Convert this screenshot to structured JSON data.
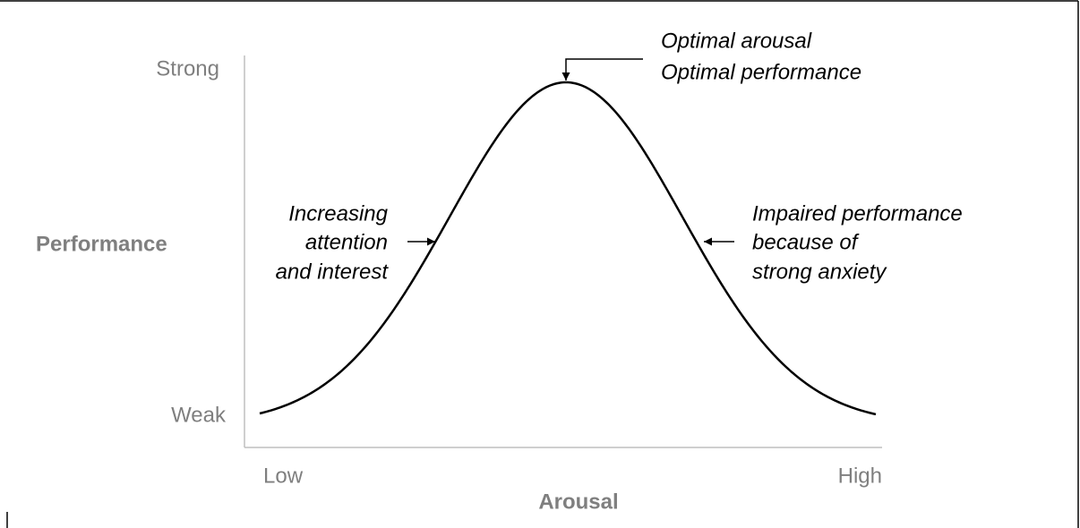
{
  "axes": {
    "y_label": "Performance",
    "y_high": "Strong",
    "y_low": "Weak",
    "x_label": "Arousal",
    "x_low": "Low",
    "x_high": "High"
  },
  "annotations": {
    "peak": [
      "Optimal arousal",
      "Optimal performance"
    ],
    "left": [
      "Increasing",
      "attention",
      "and interest"
    ],
    "right": [
      "Impaired performance",
      "because of",
      "strong anxiety"
    ]
  }
}
